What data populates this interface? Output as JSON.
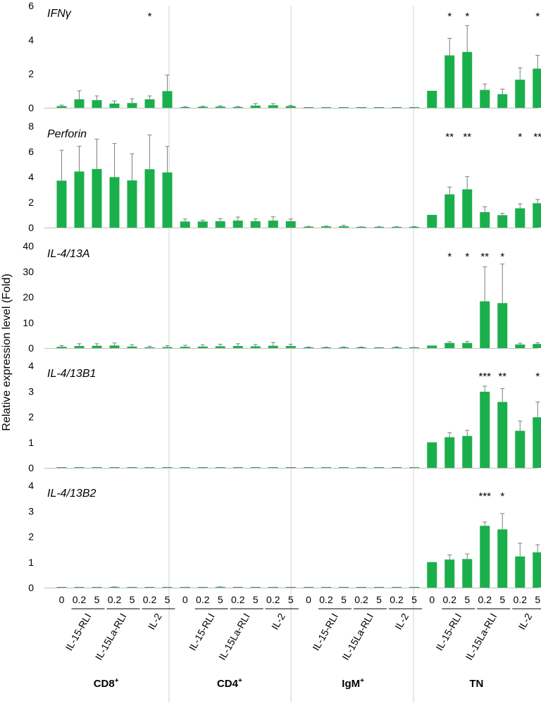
{
  "figure": {
    "ylabel": "Relative expression level (Fold)",
    "colors": {
      "bar": "#1aaf4b",
      "error_bar": "#7f7f7f",
      "grid": "#d0d0d0",
      "axis": "#bfbfbf",
      "text": "#000000"
    }
  },
  "x_axis": {
    "dose_labels": [
      "0",
      "0.2",
      "5",
      "0.2",
      "5",
      "0.2",
      "5"
    ],
    "treatments": [
      "IL-15-RLI",
      "IL-15La-RLI",
      "IL-2"
    ],
    "cell_types": [
      {
        "base": "CD8",
        "sup": "+"
      },
      {
        "base": "CD4",
        "sup": "+"
      },
      {
        "base": "IgM",
        "sup": "+"
      },
      {
        "base": "TN",
        "sup": ""
      }
    ]
  },
  "chart_data": [
    {
      "type": "bar",
      "title": "IFNγ",
      "ylim": [
        0,
        6
      ],
      "yticks": [
        "0",
        "2",
        "4",
        "6"
      ],
      "groups": [
        "CD8⁺",
        "CD4⁺",
        "IgM⁺",
        "TN"
      ],
      "values": [
        [
          0.1,
          0.5,
          0.45,
          0.25,
          0.28,
          0.5,
          0.98
        ],
        [
          0.04,
          0.06,
          0.07,
          0.05,
          0.13,
          0.15,
          0.1
        ],
        [
          0.01,
          0.01,
          0.01,
          0.01,
          0.01,
          0.01,
          0.01
        ],
        [
          1.0,
          3.08,
          3.28,
          1.05,
          0.8,
          1.65,
          2.3
        ]
      ],
      "errors": [
        [
          0.06,
          0.5,
          0.25,
          0.15,
          0.25,
          0.2,
          0.95
        ],
        [
          0.03,
          0.03,
          0.04,
          0.03,
          0.12,
          0.1,
          0.04
        ],
        [
          0.005,
          0.005,
          0.005,
          0.005,
          0.005,
          0.005,
          0.005
        ],
        [
          0,
          1.0,
          1.55,
          0.35,
          0.3,
          0.7,
          0.78
        ]
      ],
      "significance": [
        [
          "",
          "",
          "",
          "",
          "",
          "*",
          ""
        ],
        [
          "",
          "",
          "",
          "",
          "",
          "",
          ""
        ],
        [
          "",
          "",
          "",
          "",
          "",
          "",
          ""
        ],
        [
          "",
          "*",
          "*",
          "",
          "",
          "",
          "*"
        ]
      ]
    },
    {
      "type": "bar",
      "title": "Perforin",
      "ylim": [
        0,
        8
      ],
      "yticks": [
        "0",
        "2",
        "4",
        "6",
        "8"
      ],
      "groups": [
        "CD8⁺",
        "CD4⁺",
        "IgM⁺",
        "TN"
      ],
      "values": [
        [
          3.7,
          4.42,
          4.62,
          3.98,
          3.72,
          4.6,
          4.35
        ],
        [
          0.48,
          0.48,
          0.5,
          0.55,
          0.5,
          0.55,
          0.5
        ],
        [
          0.07,
          0.09,
          0.1,
          0.04,
          0.05,
          0.05,
          0.06
        ],
        [
          1.0,
          2.62,
          3.02,
          1.22,
          0.98,
          1.52,
          1.92
        ]
      ],
      "errors": [
        [
          2.4,
          2.0,
          2.35,
          2.65,
          2.1,
          2.7,
          2.05
        ],
        [
          0.2,
          0.1,
          0.2,
          0.28,
          0.18,
          0.3,
          0.18
        ],
        [
          0.03,
          0.03,
          0.08,
          0.02,
          0.02,
          0.02,
          0.02
        ],
        [
          0,
          0.58,
          1.0,
          0.42,
          0.15,
          0.35,
          0.3
        ]
      ],
      "significance": [
        [
          "",
          "",
          "",
          "",
          "",
          "",
          ""
        ],
        [
          "",
          "",
          "",
          "",
          "",
          "",
          ""
        ],
        [
          "",
          "",
          "",
          "",
          "",
          "",
          ""
        ],
        [
          "",
          "**",
          "**",
          "",
          "",
          "*",
          "**"
        ]
      ]
    },
    {
      "type": "bar",
      "title": "IL-4/13A",
      "ylim": [
        0,
        40
      ],
      "yticks": [
        "0",
        "10",
        "20",
        "30",
        "40"
      ],
      "groups": [
        "CD8⁺",
        "CD4⁺",
        "IgM⁺",
        "TN"
      ],
      "values": [
        [
          0.5,
          0.8,
          0.9,
          1.0,
          0.6,
          0.3,
          0.4
        ],
        [
          0.5,
          0.6,
          0.7,
          0.8,
          0.7,
          0.9,
          0.8
        ],
        [
          0.2,
          0.15,
          0.25,
          0.2,
          0.1,
          0.3,
          0.15
        ],
        [
          1.0,
          2.0,
          2.0,
          18.3,
          17.6,
          1.4,
          1.6
        ]
      ],
      "errors": [
        [
          0.5,
          0.9,
          0.8,
          1.0,
          0.7,
          0.4,
          0.5
        ],
        [
          0.6,
          0.7,
          0.8,
          0.9,
          0.7,
          1.3,
          0.7
        ],
        [
          0.2,
          0.2,
          0.2,
          0.2,
          0.1,
          0.2,
          0.1
        ],
        [
          0,
          0.5,
          0.6,
          13.5,
          15.3,
          0.5,
          0.5
        ]
      ],
      "significance": [
        [
          "",
          "",
          "",
          "",
          "",
          "",
          ""
        ],
        [
          "",
          "",
          "",
          "",
          "",
          "",
          ""
        ],
        [
          "",
          "",
          "",
          "",
          "",
          "",
          ""
        ],
        [
          "",
          "*",
          "*",
          "**",
          "*",
          "",
          ""
        ]
      ]
    },
    {
      "type": "bar",
      "title": "IL-4/13B1",
      "ylim": [
        0,
        4
      ],
      "yticks": [
        "0",
        "1",
        "2",
        "3",
        "4"
      ],
      "groups": [
        "CD8⁺",
        "CD4⁺",
        "IgM⁺",
        "TN"
      ],
      "values": [
        [
          0.01,
          0.01,
          0.01,
          0.01,
          0.01,
          0.01,
          0.01
        ],
        [
          0.01,
          0.01,
          0.01,
          0.01,
          0.01,
          0.01,
          0.01
        ],
        [
          0.01,
          0.01,
          0.01,
          0.01,
          0.01,
          0.01,
          0.01
        ],
        [
          1.0,
          1.2,
          1.25,
          2.98,
          2.58,
          1.45,
          1.98
        ]
      ],
      "errors": [
        [
          0.005,
          0.005,
          0.005,
          0.005,
          0.005,
          0.005,
          0.005
        ],
        [
          0.005,
          0.005,
          0.005,
          0.005,
          0.005,
          0.005,
          0.005
        ],
        [
          0.005,
          0.005,
          0.005,
          0.005,
          0.005,
          0.005,
          0.005
        ],
        [
          0,
          0.18,
          0.22,
          0.22,
          0.52,
          0.38,
          0.6
        ]
      ],
      "significance": [
        [
          "",
          "",
          "",
          "",
          "",
          "",
          ""
        ],
        [
          "",
          "",
          "",
          "",
          "",
          "",
          ""
        ],
        [
          "",
          "",
          "",
          "",
          "",
          "",
          ""
        ],
        [
          "",
          "",
          "",
          "***",
          "**",
          "",
          "*"
        ]
      ]
    },
    {
      "type": "bar",
      "title": "IL-4/13B2",
      "ylim": [
        0,
        4
      ],
      "yticks": [
        "0",
        "1",
        "2",
        "3",
        "4"
      ],
      "groups": [
        "CD8⁺",
        "CD4⁺",
        "IgM⁺",
        "TN"
      ],
      "values": [
        [
          0.01,
          0.01,
          0.01,
          0.02,
          0.01,
          0.01,
          0.01
        ],
        [
          0.01,
          0.01,
          0.02,
          0.01,
          0.01,
          0.01,
          0.01
        ],
        [
          0.01,
          0.01,
          0.01,
          0.01,
          0.01,
          0.01,
          0.01
        ],
        [
          1.0,
          1.1,
          1.12,
          2.42,
          2.28,
          1.22,
          1.38
        ]
      ],
      "errors": [
        [
          0.005,
          0.005,
          0.005,
          0.01,
          0.005,
          0.005,
          0.005
        ],
        [
          0.005,
          0.005,
          0.01,
          0.005,
          0.005,
          0.005,
          0.005
        ],
        [
          0.005,
          0.005,
          0.005,
          0.005,
          0.005,
          0.005,
          0.005
        ],
        [
          0,
          0.18,
          0.2,
          0.15,
          0.62,
          0.52,
          0.3
        ]
      ],
      "significance": [
        [
          "",
          "",
          "",
          "",
          "",
          "",
          ""
        ],
        [
          "",
          "",
          "",
          "",
          "",
          "",
          ""
        ],
        [
          "",
          "",
          "",
          "",
          "",
          "",
          ""
        ],
        [
          "",
          "",
          "",
          "***",
          "*",
          "",
          ""
        ]
      ]
    }
  ]
}
